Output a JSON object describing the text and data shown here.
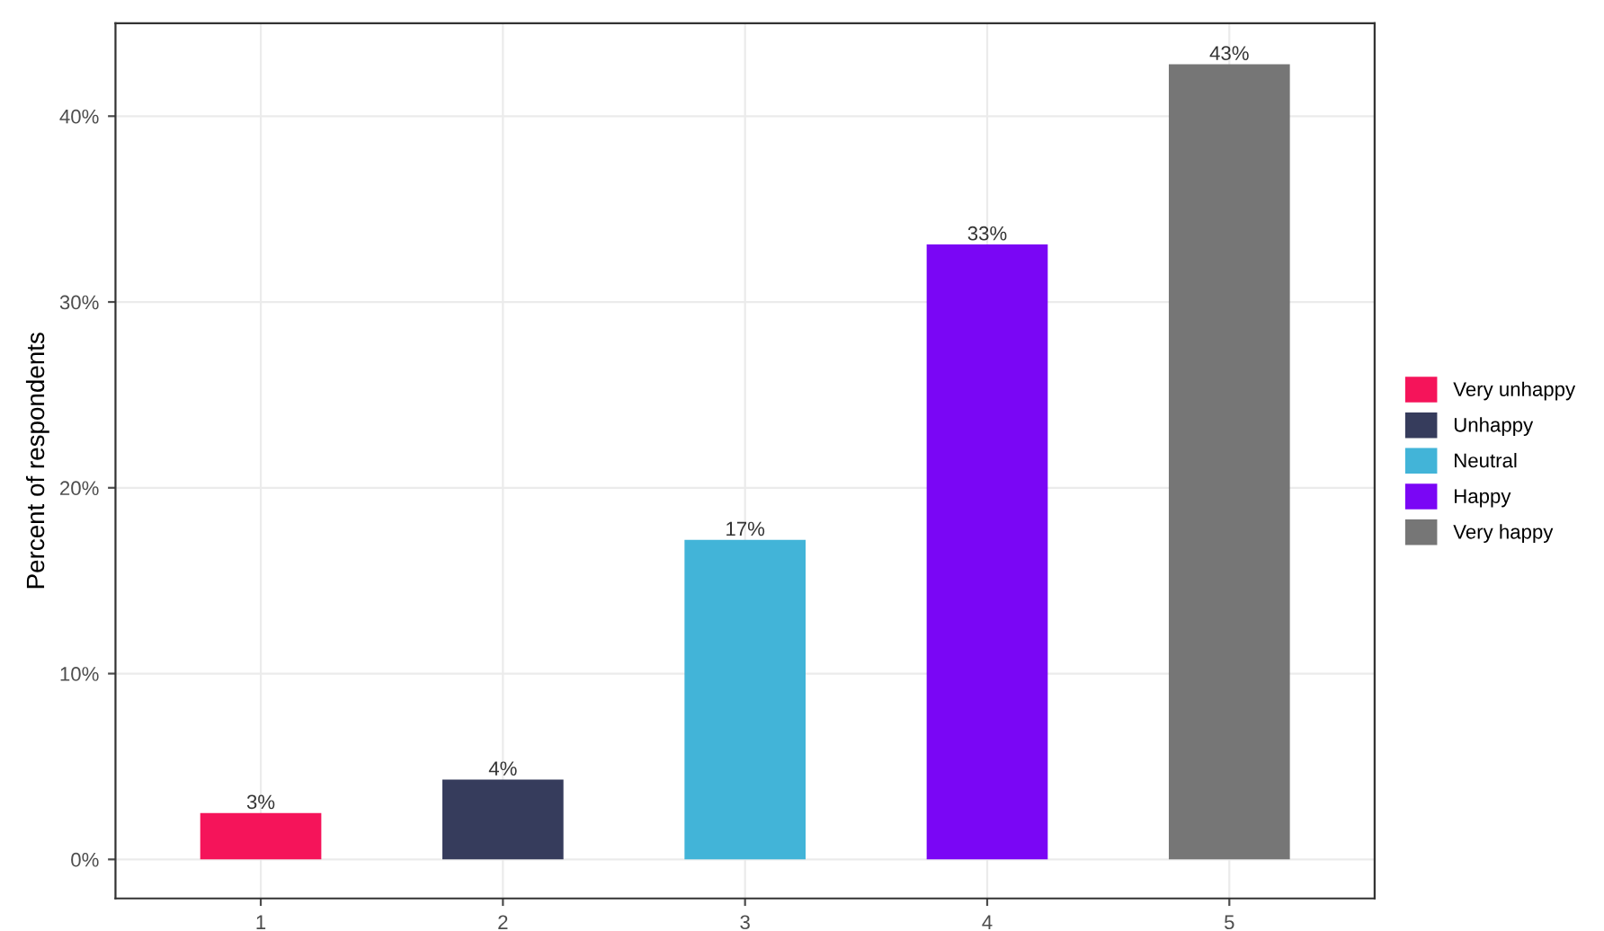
{
  "chart_data": {
    "type": "bar",
    "ylabel": "Percent of respondents",
    "categories": [
      "1",
      "2",
      "3",
      "4",
      "5"
    ],
    "series": [
      {
        "name": "Very unhappy",
        "color": "#f5145a",
        "values": [
          2.5,
          null,
          null,
          null,
          null
        ],
        "value_labels": [
          "3%",
          null,
          null,
          null,
          null
        ]
      },
      {
        "name": "Unhappy",
        "color": "#363c5c",
        "values": [
          null,
          4.3,
          null,
          null,
          null
        ],
        "value_labels": [
          null,
          "4%",
          null,
          null,
          null
        ]
      },
      {
        "name": "Neutral",
        "color": "#42b4d8",
        "values": [
          null,
          null,
          17.2,
          null,
          null
        ],
        "value_labels": [
          null,
          null,
          "17%",
          null,
          null
        ]
      },
      {
        "name": "Happy",
        "color": "#7a06f5",
        "values": [
          null,
          null,
          null,
          33.1,
          null
        ],
        "value_labels": [
          null,
          null,
          null,
          "33%",
          null
        ]
      },
      {
        "name": "Very happy",
        "color": "#767676",
        "values": [
          null,
          null,
          null,
          null,
          42.8
        ],
        "value_labels": [
          null,
          null,
          null,
          null,
          "43%"
        ]
      }
    ],
    "ylim": [
      -2.1,
      45
    ],
    "yticks": [
      {
        "value": 0,
        "label": "0%"
      },
      {
        "value": 10,
        "label": "10%"
      },
      {
        "value": 20,
        "label": "20%"
      },
      {
        "value": 30,
        "label": "30%"
      },
      {
        "value": 40,
        "label": "40%"
      }
    ],
    "grid": true,
    "legend": "right"
  }
}
